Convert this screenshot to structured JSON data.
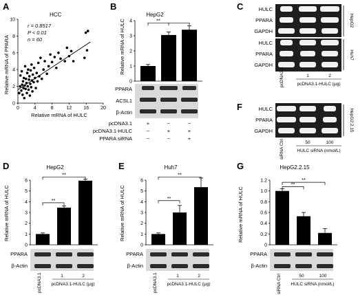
{
  "panel_letters": {
    "A": "A",
    "B": "B",
    "C": "C",
    "D": "D",
    "E": "E",
    "F": "F",
    "G": "G"
  },
  "chart_data": [
    {
      "panel": "A",
      "type": "scatter",
      "title": "HCC",
      "xlabel": "Relative mRNA of HULC",
      "ylabel": "Relative mRNA of PPARA",
      "xlim": [
        0,
        20
      ],
      "ylim": [
        0,
        10
      ],
      "xticks": [
        "0",
        "4",
        "8",
        "12",
        "16",
        "20"
      ],
      "yticks": [
        "0",
        "2",
        "4",
        "6",
        "8",
        "10"
      ],
      "annotations": [
        "r = 0.8517",
        "P < 0.01",
        "n = 60"
      ],
      "regression": {
        "x0": 0,
        "y0": 1.6,
        "x1": 17,
        "y1": 7.3
      },
      "points": [
        [
          0.3,
          1.2
        ],
        [
          0.5,
          2.0
        ],
        [
          0.6,
          3.3
        ],
        [
          0.8,
          1.5
        ],
        [
          0.9,
          3.8
        ],
        [
          1.0,
          2.2
        ],
        [
          1.1,
          1.0
        ],
        [
          1.2,
          2.6
        ],
        [
          1.3,
          1.8
        ],
        [
          1.4,
          3.0
        ],
        [
          1.5,
          0.6
        ],
        [
          1.6,
          2.1
        ],
        [
          1.7,
          4.4
        ],
        [
          1.8,
          1.7
        ],
        [
          1.9,
          2.9
        ],
        [
          2.0,
          2.4
        ],
        [
          2.1,
          1.2
        ],
        [
          2.2,
          3.6
        ],
        [
          2.3,
          2.0
        ],
        [
          2.4,
          4.0
        ],
        [
          2.5,
          1.6
        ],
        [
          2.6,
          2.8
        ],
        [
          2.7,
          3.2
        ],
        [
          2.8,
          0.9
        ],
        [
          2.9,
          2.3
        ],
        [
          3.0,
          3.9
        ],
        [
          3.1,
          1.9
        ],
        [
          3.2,
          4.6
        ],
        [
          3.3,
          2.7
        ],
        [
          3.4,
          1.4
        ],
        [
          3.5,
          3.4
        ],
        [
          3.7,
          2.5
        ],
        [
          3.8,
          4.2
        ],
        [
          4.0,
          3.0
        ],
        [
          4.2,
          1.8
        ],
        [
          4.4,
          3.6
        ],
        [
          4.6,
          2.6
        ],
        [
          4.8,
          4.8
        ],
        [
          5.0,
          3.2
        ],
        [
          5.3,
          5.4
        ],
        [
          5.6,
          2.9
        ],
        [
          6.0,
          4.0
        ],
        [
          6.3,
          5.0
        ],
        [
          6.8,
          3.5
        ],
        [
          7.2,
          4.4
        ],
        [
          7.6,
          5.8
        ],
        [
          8.0,
          4.9
        ],
        [
          8.6,
          5.5
        ],
        [
          9.0,
          4.2
        ],
        [
          9.5,
          6.0
        ],
        [
          10.0,
          5.3
        ],
        [
          11.0,
          5.0
        ],
        [
          11.5,
          6.6
        ],
        [
          12.0,
          5.6
        ],
        [
          12.5,
          6.2
        ],
        [
          13.0,
          5.0
        ],
        [
          15.6,
          5.4
        ],
        [
          15.9,
          8.4
        ],
        [
          16.2,
          6.3
        ],
        [
          16.4,
          8.6
        ]
      ]
    },
    {
      "panel": "B",
      "type": "bar",
      "title": "HepG2",
      "ylabel": "Relative mRNA of HULC",
      "ylim": [
        0,
        4
      ],
      "yticks": [
        "0",
        "1",
        "2",
        "3",
        "4"
      ],
      "values": [
        1.0,
        3.05,
        3.4
      ],
      "errors": [
        0.1,
        0.2,
        0.25
      ],
      "significance": [
        "**"
      ]
    },
    {
      "panel": "D",
      "type": "bar",
      "title": "HepG2",
      "ylabel": "Relative mRNA of HULC",
      "ylim": [
        0,
        6
      ],
      "yticks": [
        "0",
        "1",
        "2",
        "3",
        "4",
        "5",
        "6"
      ],
      "categories": [
        "pcDNA3.1",
        "1",
        "2"
      ],
      "xlabel": "pcDNA3.1-HULC (μg)",
      "values": [
        1.0,
        3.45,
        5.95
      ],
      "errors": [
        0.1,
        0.15,
        0.15
      ],
      "significance": [
        "**",
        "**"
      ]
    },
    {
      "panel": "E",
      "type": "bar",
      "title": "Huh7",
      "ylabel": "Relative mRNA of HULC",
      "ylim": [
        0,
        6
      ],
      "yticks": [
        "0",
        "1",
        "2",
        "3",
        "4",
        "5",
        "6"
      ],
      "categories": [
        "pcDNA3.1",
        "1",
        "2"
      ],
      "xlabel": "pcDNA3.1-HULC (μg)",
      "values": [
        1.0,
        3.0,
        5.35
      ],
      "errors": [
        0.1,
        0.65,
        0.85
      ],
      "significance": [
        "**",
        "**"
      ]
    },
    {
      "panel": "G",
      "type": "bar",
      "title": "HepG2.2.15",
      "ylabel": "Relative mRNA of HULC",
      "ylim": [
        0,
        1.2
      ],
      "yticks": [
        "0",
        "0.2",
        "0.4",
        "0.6",
        "0.8",
        "1.0",
        "1.2"
      ],
      "categories": [
        "siRNA Ctrl",
        "50",
        "100"
      ],
      "xlabel": "HULC siRNA (nmol/L)",
      "values": [
        1.0,
        0.53,
        0.22
      ],
      "errors": [
        0.04,
        0.07,
        0.08
      ],
      "significance": [
        "**",
        "**"
      ]
    }
  ],
  "panelB": {
    "blots": [
      "PPARA",
      "ACSL1",
      "β-Actin"
    ],
    "rows": [
      "pcDNA3.1",
      "pcDNA3.1-HULC",
      "PPARA siRNA"
    ],
    "signs": [
      [
        "+",
        "−",
        "−"
      ],
      [
        "−",
        "+",
        "+"
      ],
      [
        "−",
        "−",
        "+"
      ]
    ]
  },
  "panelC": {
    "blots": [
      "HULC",
      "PPARA",
      "GAPDH",
      "HULC",
      "PPARA",
      "GAPDH"
    ],
    "cell1": "HepG2",
    "cell2": "Huh7",
    "lanes": [
      "pcDNA3.1",
      "1",
      "2"
    ],
    "xlabel": "pcDNA3.1-HULC (μg)"
  },
  "panelF": {
    "blots": [
      "HULC",
      "PPARA",
      "GAPDH"
    ],
    "cell": "HepG2.2.15",
    "lanes": [
      "siRNA Ctrl",
      "50",
      "100"
    ],
    "xlabel": "HULC siRNA (nmol/L)"
  },
  "panelD_blots": [
    "PPARA",
    "β-Actin"
  ],
  "panelE_blots": [
    "PPARA",
    "β-Actin"
  ],
  "panelG_blots": [
    "PPARA",
    "β-Actin"
  ]
}
